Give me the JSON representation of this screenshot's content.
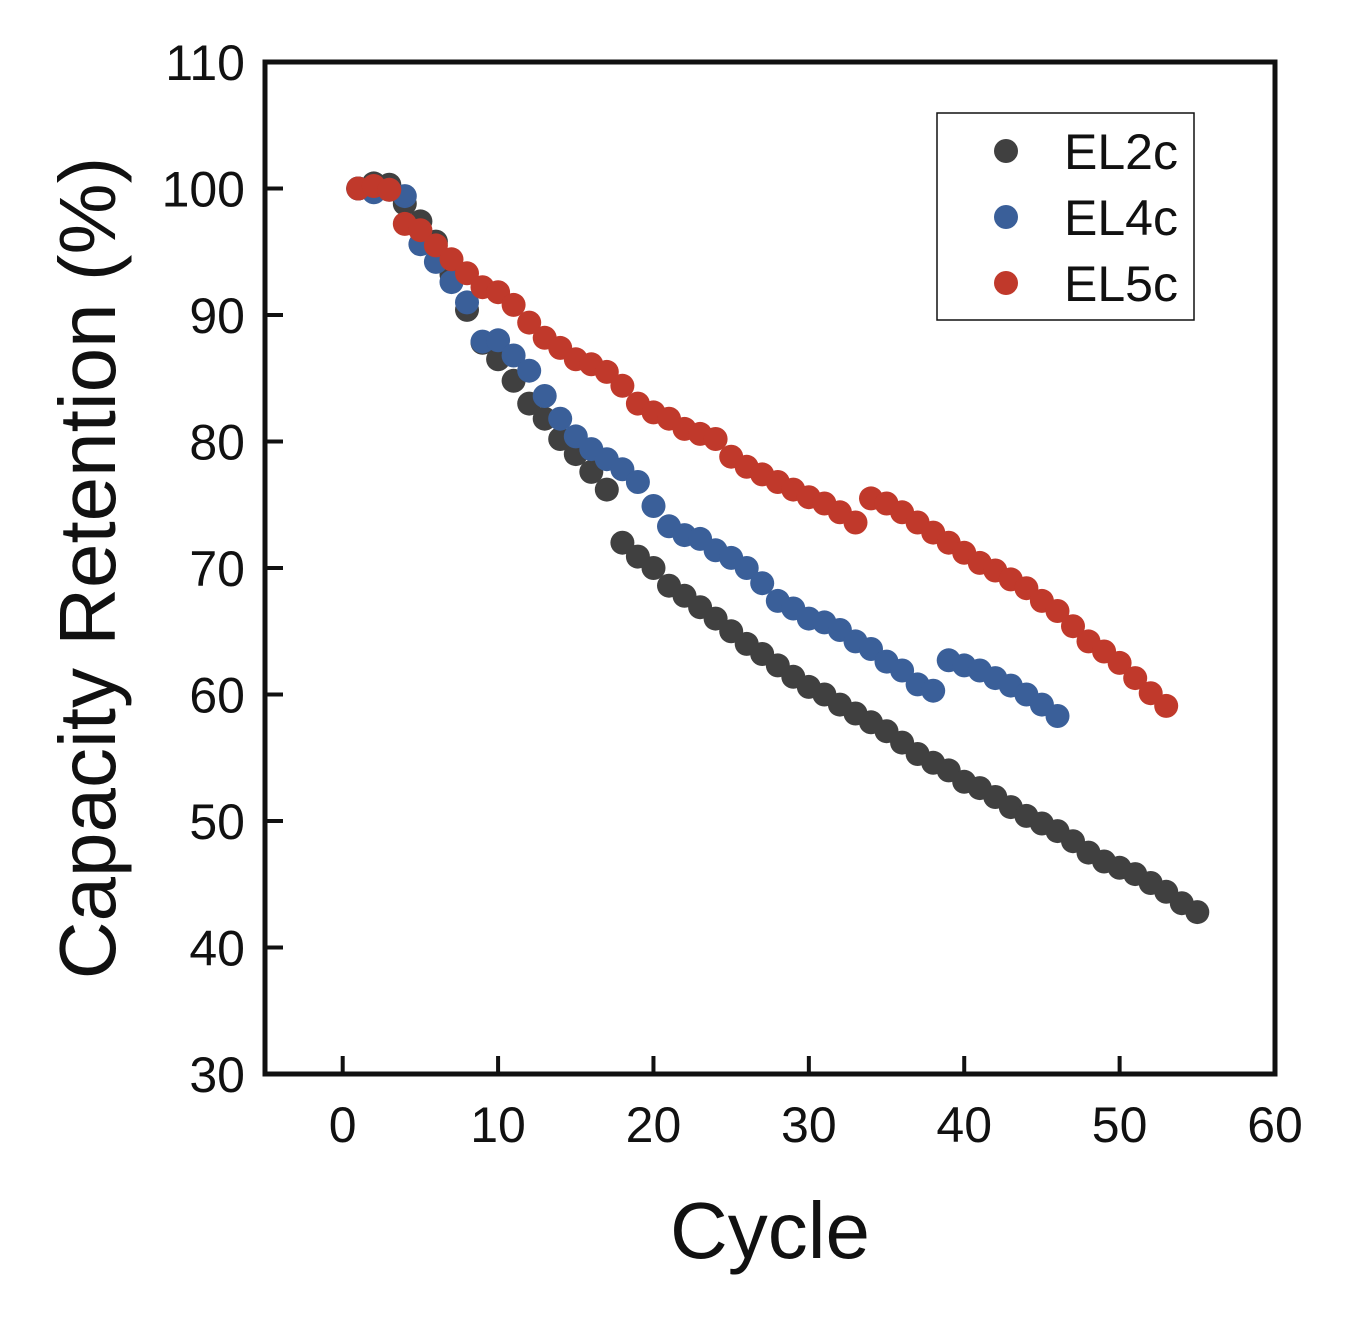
{
  "chart_data": {
    "type": "scatter",
    "title": "",
    "xlabel": "Cycle",
    "ylabel": "Capacity Retention (%)",
    "xlim": [
      -5,
      60
    ],
    "ylim": [
      30,
      110
    ],
    "xticks": [
      0,
      10,
      20,
      30,
      40,
      50,
      60
    ],
    "yticks": [
      30,
      40,
      50,
      60,
      70,
      80,
      90,
      100,
      110
    ],
    "xtick_labels": [
      "0",
      "10",
      "20",
      "30",
      "40",
      "50",
      "60"
    ],
    "ytick_labels": [
      "30",
      "40",
      "50",
      "60",
      "70",
      "80",
      "90",
      "100",
      "110"
    ],
    "grid": false,
    "legend": "top-right",
    "series": [
      {
        "name": "EL2c",
        "color": "#404040",
        "x": [
          1,
          2,
          3,
          4,
          5,
          6,
          7,
          8,
          9,
          10,
          11,
          12,
          13,
          14,
          15,
          16,
          17,
          18,
          19,
          20,
          21,
          22,
          23,
          24,
          25,
          26,
          27,
          28,
          29,
          30,
          31,
          32,
          33,
          34,
          35,
          36,
          37,
          38,
          39,
          40,
          41,
          42,
          43,
          44,
          45,
          46,
          47,
          48,
          49,
          50,
          51,
          52,
          53,
          54,
          55
        ],
        "y": [
          100,
          100.4,
          100.3,
          98.8,
          97.4,
          95.8,
          93.2,
          90.4,
          87.8,
          86.5,
          84.8,
          83.0,
          81.8,
          80.2,
          79.0,
          77.6,
          76.2,
          72.0,
          70.9,
          70.0,
          68.6,
          67.8,
          66.9,
          66.0,
          65.0,
          64.0,
          63.2,
          62.3,
          61.4,
          60.6,
          60.0,
          59.2,
          58.5,
          57.8,
          57.1,
          56.2,
          55.3,
          54.6,
          54.0,
          53.1,
          52.6,
          51.9,
          51.1,
          50.4,
          49.8,
          49.2,
          48.4,
          47.5,
          46.8,
          46.3,
          45.8,
          45.1,
          44.4,
          43.5,
          42.8
        ]
      },
      {
        "name": "EL4c",
        "color": "#3a5f99",
        "x": [
          1,
          2,
          3,
          4,
          5,
          6,
          7,
          8,
          9,
          10,
          11,
          12,
          13,
          14,
          15,
          16,
          17,
          18,
          19,
          20,
          21,
          22,
          23,
          24,
          25,
          26,
          27,
          28,
          29,
          30,
          31,
          32,
          33,
          34,
          35,
          36,
          37,
          38,
          39,
          40,
          41,
          42,
          43,
          44,
          45,
          46
        ],
        "y": [
          100,
          99.7,
          99.9,
          99.4,
          95.6,
          94.2,
          92.6,
          91.0,
          87.9,
          88.0,
          86.8,
          85.6,
          83.6,
          81.8,
          80.4,
          79.4,
          78.6,
          77.8,
          76.8,
          74.9,
          73.3,
          72.6,
          72.3,
          71.4,
          70.8,
          70.0,
          68.8,
          67.4,
          66.8,
          66.0,
          65.7,
          65.1,
          64.2,
          63.6,
          62.6,
          61.9,
          60.8,
          60.3,
          62.7,
          62.3,
          61.9,
          61.3,
          60.7,
          60.0,
          59.2,
          58.3
        ]
      },
      {
        "name": "EL5c",
        "color": "#c0392b",
        "x": [
          1,
          2,
          3,
          4,
          5,
          6,
          7,
          8,
          9,
          10,
          11,
          12,
          13,
          14,
          15,
          16,
          17,
          18,
          19,
          20,
          21,
          22,
          23,
          24,
          25,
          26,
          27,
          28,
          29,
          30,
          31,
          32,
          33,
          34,
          35,
          36,
          37,
          38,
          39,
          40,
          41,
          42,
          43,
          44,
          45,
          46,
          47,
          48,
          49,
          50,
          51,
          52,
          53
        ],
        "y": [
          100,
          100.2,
          99.9,
          97.2,
          96.7,
          95.5,
          94.4,
          93.3,
          92.2,
          91.8,
          90.8,
          89.4,
          88.2,
          87.4,
          86.5,
          86.1,
          85.5,
          84.4,
          83.0,
          82.3,
          81.8,
          81.0,
          80.6,
          80.2,
          78.8,
          78.0,
          77.4,
          76.8,
          76.2,
          75.6,
          75.1,
          74.4,
          73.6,
          75.5,
          75.1,
          74.4,
          73.6,
          72.8,
          72.0,
          71.2,
          70.4,
          69.8,
          69.1,
          68.4,
          67.4,
          66.6,
          65.4,
          64.2,
          63.4,
          62.5,
          61.3,
          60.1,
          59.1
        ]
      }
    ]
  }
}
